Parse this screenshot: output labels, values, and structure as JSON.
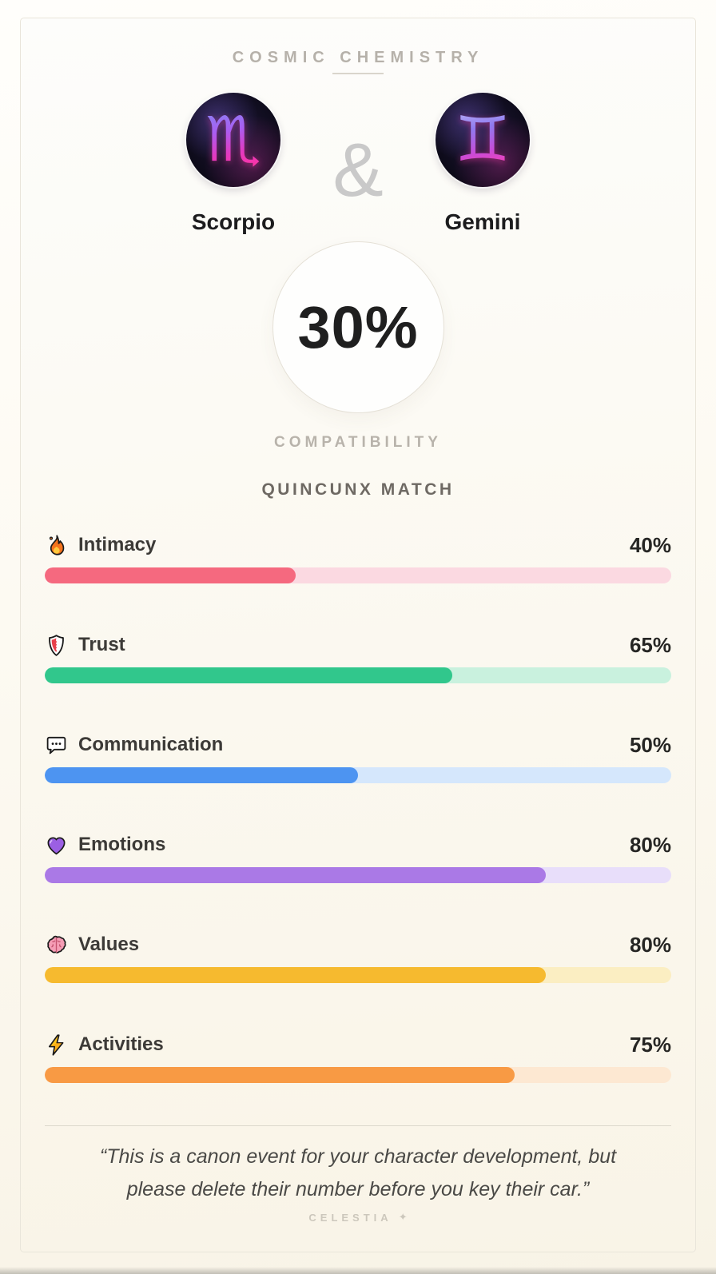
{
  "header": {
    "title": "COSMIC CHEMISTRY"
  },
  "pairing": {
    "separator": "&",
    "signs": [
      {
        "name": "Scorpio",
        "glyph": "♏",
        "icon": "scorpio-zodiac-icon"
      },
      {
        "name": "Gemini",
        "glyph": "♊",
        "icon": "gemini-zodiac-icon"
      }
    ]
  },
  "score": {
    "value": "30%",
    "caption": "COMPATIBILITY",
    "match_label": "QUINCUNX MATCH"
  },
  "stats": [
    {
      "icon": "flame-icon",
      "label": "Intimacy",
      "value_label": "40%",
      "percent": 40,
      "fill_color": "#F5697F",
      "track_color": "#FBD9E1"
    },
    {
      "icon": "shield-icon",
      "label": "Trust",
      "value_label": "65%",
      "percent": 65,
      "fill_color": "#31C78C",
      "track_color": "#C9F1DE"
    },
    {
      "icon": "speech-bubble-icon",
      "label": "Communication",
      "value_label": "50%",
      "percent": 50,
      "fill_color": "#4D94F1",
      "track_color": "#D5E7FC"
    },
    {
      "icon": "heart-icon",
      "label": "Emotions",
      "value_label": "80%",
      "percent": 80,
      "fill_color": "#AA79E6",
      "track_color": "#E8DEFA"
    },
    {
      "icon": "brain-icon",
      "label": "Values",
      "value_label": "80%",
      "percent": 80,
      "fill_color": "#F6BA2F",
      "track_color": "#FBEEC2"
    },
    {
      "icon": "bolt-icon",
      "label": "Activities",
      "value_label": "75%",
      "percent": 75,
      "fill_color": "#F89A44",
      "track_color": "#FDE8D2"
    }
  ],
  "quote": "“This is a canon event for your character development, but please delete their number before you key their car.”",
  "footer": {
    "brand": "CELESTIA",
    "star": "✦"
  }
}
